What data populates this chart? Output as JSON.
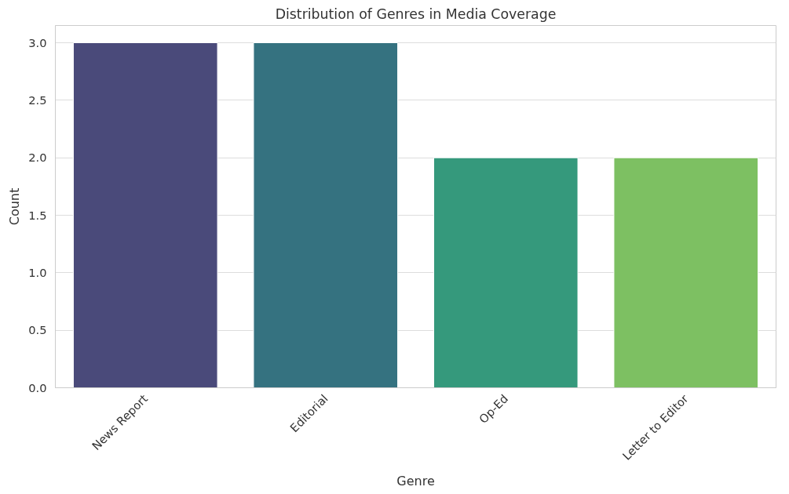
{
  "chart_data": {
    "type": "bar",
    "title": "Distribution of Genres in Media Coverage",
    "xlabel": "Genre",
    "ylabel": "Count",
    "categories": [
      "News Report",
      "Editorial",
      "Op-Ed",
      "Letter to Editor"
    ],
    "values": [
      3,
      3,
      2,
      2
    ],
    "colors": [
      "#4a4a7a",
      "#357280",
      "#35997c",
      "#7dc062"
    ],
    "ylim": [
      0,
      3.15
    ],
    "yticks": [
      {
        "value": 0,
        "label": "0.0"
      },
      0.5,
      {
        "value": 1,
        "label": "1.0"
      },
      1.5,
      {
        "value": 2,
        "label": "2.0"
      },
      2.5,
      {
        "value": 3,
        "label": "3.0"
      }
    ],
    "grid": "y"
  }
}
